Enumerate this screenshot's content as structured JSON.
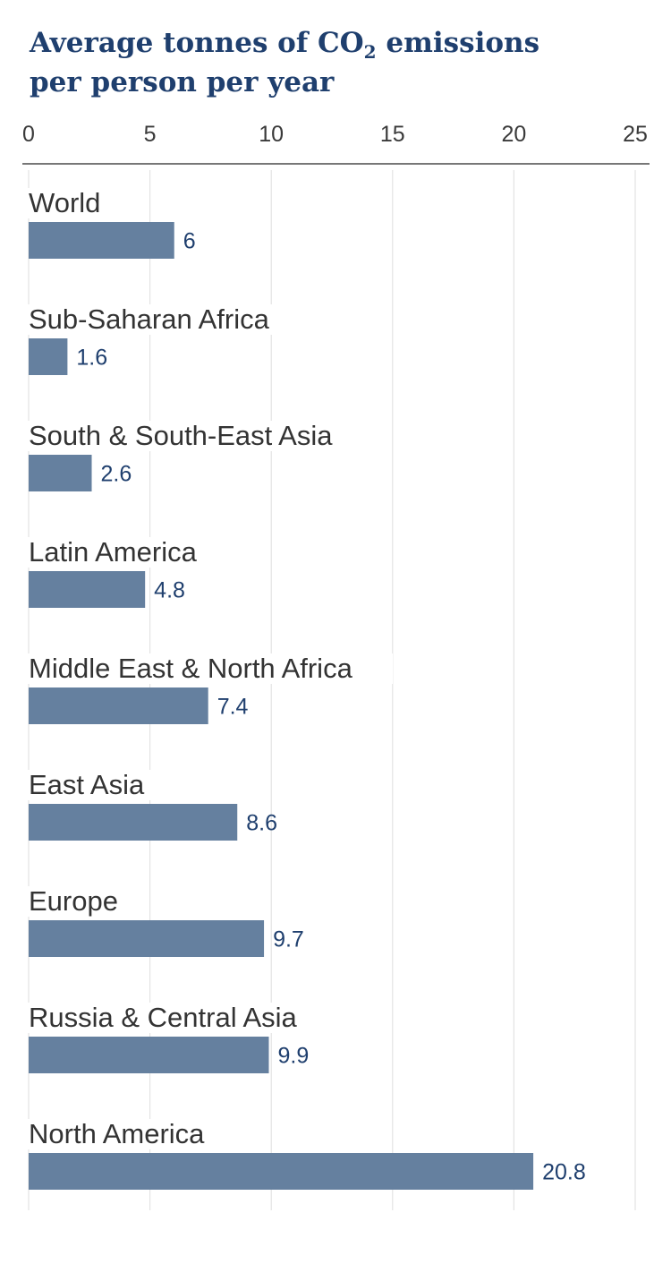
{
  "chart_data": {
    "type": "bar",
    "orientation": "horizontal",
    "title_line1_prefix": "Average tonnes of CO",
    "title_subscript": "2",
    "title_line1_suffix": " emissions",
    "title_line2": "per person per year",
    "xlim": [
      0,
      25
    ],
    "x_ticks": [
      0,
      5,
      10,
      15,
      20,
      25
    ],
    "grid": true,
    "axis_position": "top",
    "bar_color": "#65809f",
    "title_color": "#1f3f6e",
    "categories": [
      "World",
      "Sub-Saharan Africa",
      "South & South-East Asia",
      "Latin America",
      "Middle East & North Africa",
      "East Asia",
      "Europe",
      "Russia & Central Asia",
      "North America"
    ],
    "values": [
      6,
      1.6,
      2.6,
      4.8,
      7.4,
      8.6,
      9.7,
      9.9,
      20.8
    ],
    "value_labels": [
      "6",
      "1.6",
      "2.6",
      "4.8",
      "7.4",
      "8.6",
      "9.7",
      "9.9",
      "20.8"
    ]
  }
}
